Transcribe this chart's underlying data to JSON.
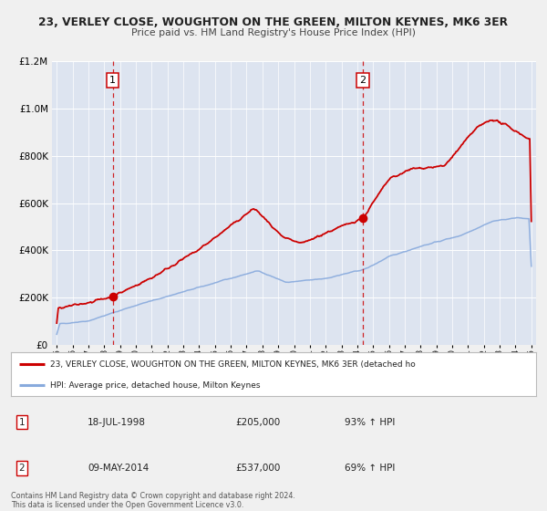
{
  "title": "23, VERLEY CLOSE, WOUGHTON ON THE GREEN, MILTON KEYNES, MK6 3ER",
  "subtitle": "Price paid vs. HM Land Registry's House Price Index (HPI)",
  "fig_bg_color": "#f0f0f0",
  "plot_bg_color": "#dde4f0",
  "grid_color": "#ffffff",
  "red_line_color": "#cc0000",
  "blue_line_color": "#88aadd",
  "sale1_date_x": 1998.54,
  "sale1_price": 205000,
  "sale1_label": "1",
  "sale2_date_x": 2014.36,
  "sale2_price": 537000,
  "sale2_label": "2",
  "vline_color": "#cc0000",
  "marker_color": "#cc0000",
  "legend_line1": "23, VERLEY CLOSE, WOUGHTON ON THE GREEN, MILTON KEYNES, MK6 3ER (detached ho",
  "legend_line2": "HPI: Average price, detached house, Milton Keynes",
  "table_row1": [
    "1",
    "18-JUL-1998",
    "£205,000",
    "93% ↑ HPI"
  ],
  "table_row2": [
    "2",
    "09-MAY-2014",
    "£537,000",
    "69% ↑ HPI"
  ],
  "footer1": "Contains HM Land Registry data © Crown copyright and database right 2024.",
  "footer2": "This data is licensed under the Open Government Licence v3.0.",
  "ylim_max": 1200000,
  "yticks": [
    0,
    200000,
    400000,
    600000,
    800000,
    1000000,
    1200000
  ],
  "xlim_start": 1994.7,
  "xlim_end": 2025.3
}
